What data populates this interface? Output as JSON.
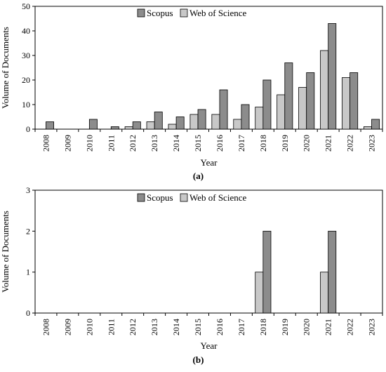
{
  "chart_data": [
    {
      "type": "bar",
      "panel_label": "(a)",
      "categories": [
        "2008",
        "2009",
        "2010",
        "2011",
        "2012",
        "2013",
        "2014",
        "2015",
        "2016",
        "2017",
        "2018",
        "2019",
        "2020",
        "2021",
        "2022",
        "2023"
      ],
      "series": [
        {
          "name": "Web of Science",
          "color": "#c8c8c8",
          "values": [
            0,
            0,
            0,
            0,
            1,
            3,
            2,
            6,
            6,
            4,
            9,
            14,
            17,
            32,
            21,
            1
          ]
        },
        {
          "name": "Scopus",
          "color": "#8c8c8c",
          "values": [
            3,
            0,
            4,
            1,
            3,
            7,
            5,
            8,
            16,
            10,
            20,
            27,
            23,
            43,
            23,
            4
          ]
        }
      ],
      "legend_order": [
        "Scopus",
        "Web of Science"
      ],
      "xlabel": "Year",
      "ylabel": "Volume of Documents",
      "ylim": [
        0,
        50
      ],
      "yticks": [
        0,
        10,
        20,
        30,
        40,
        50
      ],
      "grid": false,
      "legend_position": "top-center"
    },
    {
      "type": "bar",
      "panel_label": "(b)",
      "categories": [
        "2008",
        "2009",
        "2010",
        "2011",
        "2012",
        "2013",
        "2014",
        "2015",
        "2016",
        "2017",
        "2018",
        "2019",
        "2020",
        "2021",
        "2022",
        "2023"
      ],
      "series": [
        {
          "name": "Web of Science",
          "color": "#c8c8c8",
          "values": [
            0,
            0,
            0,
            0,
            0,
            0,
            0,
            0,
            0,
            0,
            1,
            0,
            0,
            1,
            0,
            0
          ]
        },
        {
          "name": "Scopus",
          "color": "#8c8c8c",
          "values": [
            0,
            0,
            0,
            0,
            0,
            0,
            0,
            0,
            0,
            0,
            2,
            0,
            0,
            2,
            0,
            0
          ]
        }
      ],
      "legend_order": [
        "Scopus",
        "Web of Science"
      ],
      "xlabel": "Year",
      "ylabel": "Volume of Documents",
      "ylim": [
        0,
        3
      ],
      "yticks": [
        0,
        1,
        2,
        3
      ],
      "grid": false,
      "legend_position": "top-center"
    }
  ]
}
